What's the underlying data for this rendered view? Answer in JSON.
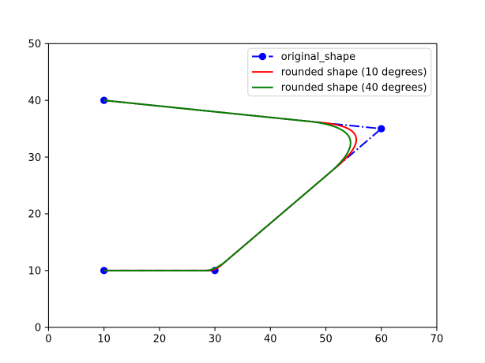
{
  "figure": {
    "background": "#ffffff",
    "text_color": "#000000",
    "axes_edge_color": "#000000"
  },
  "chart_data": {
    "type": "line",
    "title": "",
    "xlabel": "",
    "ylabel": "",
    "xlim": [
      0,
      70
    ],
    "ylim": [
      0,
      50
    ],
    "xticks": [
      0,
      10,
      20,
      30,
      40,
      50,
      60,
      70
    ],
    "yticks": [
      0,
      10,
      20,
      30,
      40,
      50
    ],
    "grid": false,
    "legend": {
      "position": "upper right",
      "frame_color": "#d6d6d6",
      "background": "#ffffff"
    },
    "series": [
      {
        "name": "original-shape-line",
        "label": "original_shape",
        "color": "#0000ff",
        "linestyle": "dashdot",
        "marker": "circle",
        "points": [
          [
            10,
            10
          ],
          [
            30,
            10
          ],
          [
            60,
            35
          ],
          [
            10,
            40
          ]
        ]
      },
      {
        "name": "rounded-shape-10-degrees-line",
        "label": "rounded shape (10 degrees)",
        "color": "#ff0000",
        "linestyle": "solid",
        "marker": "none",
        "points": [
          [
            10.0,
            10.0
          ],
          [
            28.8,
            10.0
          ],
          [
            28.87,
            10.0
          ],
          [
            28.94,
            10.0
          ],
          [
            29.01,
            10.01
          ],
          [
            29.07,
            10.01
          ],
          [
            29.14,
            10.02
          ],
          [
            29.21,
            10.03
          ],
          [
            29.28,
            10.04
          ],
          [
            29.35,
            10.05
          ],
          [
            29.41,
            10.06
          ],
          [
            29.48,
            10.08
          ],
          [
            29.55,
            10.09
          ],
          [
            29.62,
            10.11
          ],
          [
            29.68,
            10.13
          ],
          [
            29.75,
            10.15
          ],
          [
            29.82,
            10.18
          ],
          [
            29.89,
            10.2
          ],
          [
            29.95,
            10.23
          ],
          [
            30.02,
            10.25
          ],
          [
            30.09,
            10.28
          ],
          [
            30.16,
            10.31
          ],
          [
            30.22,
            10.35
          ],
          [
            30.29,
            10.38
          ],
          [
            30.36,
            10.41
          ],
          [
            30.42,
            10.45
          ],
          [
            30.49,
            10.49
          ],
          [
            30.56,
            10.53
          ],
          [
            30.62,
            10.57
          ],
          [
            30.69,
            10.61
          ],
          [
            30.76,
            10.66
          ],
          [
            30.82,
            10.71
          ],
          [
            30.89,
            10.75
          ],
          [
            30.95,
            10.8
          ],
          [
            31.02,
            10.85
          ],
          [
            31.09,
            10.91
          ],
          [
            31.15,
            10.96
          ],
          [
            52.01,
            28.34
          ],
          [
            52.45,
            28.72
          ],
          [
            52.86,
            29.08
          ],
          [
            53.25,
            29.44
          ],
          [
            53.6,
            29.79
          ],
          [
            53.92,
            30.13
          ],
          [
            54.21,
            30.46
          ],
          [
            54.47,
            30.78
          ],
          [
            54.7,
            31.09
          ],
          [
            54.91,
            31.39
          ],
          [
            55.08,
            31.69
          ],
          [
            55.22,
            31.97
          ],
          [
            55.33,
            32.25
          ],
          [
            55.42,
            32.51
          ],
          [
            55.47,
            32.77
          ],
          [
            55.49,
            33.02
          ],
          [
            55.48,
            33.25
          ],
          [
            55.45,
            33.48
          ],
          [
            55.38,
            33.7
          ],
          [
            55.28,
            33.91
          ],
          [
            55.15,
            34.12
          ],
          [
            55.0,
            34.31
          ],
          [
            54.81,
            34.49
          ],
          [
            54.59,
            34.66
          ],
          [
            54.34,
            34.83
          ],
          [
            54.07,
            34.98
          ],
          [
            53.76,
            35.13
          ],
          [
            53.42,
            35.27
          ],
          [
            53.06,
            35.4
          ],
          [
            52.66,
            35.51
          ],
          [
            52.23,
            35.62
          ],
          [
            51.78,
            35.72
          ],
          [
            51.29,
            35.82
          ],
          [
            50.77,
            35.9
          ],
          [
            50.23,
            35.97
          ],
          [
            49.65,
            36.03
          ],
          [
            10.0,
            40.0
          ]
        ]
      },
      {
        "name": "rounded-shape-40-degrees-line",
        "label": "rounded shape (40 degrees)",
        "color": "#008000",
        "linestyle": "solid",
        "marker": "none",
        "points": [
          [
            10.0,
            10.0
          ],
          [
            28.2,
            10.0
          ],
          [
            28.3,
            10.0
          ],
          [
            28.41,
            10.01
          ],
          [
            28.51,
            10.01
          ],
          [
            28.62,
            10.02
          ],
          [
            28.72,
            10.04
          ],
          [
            28.83,
            10.05
          ],
          [
            28.93,
            10.07
          ],
          [
            29.04,
            10.09
          ],
          [
            29.14,
            10.11
          ],
          [
            29.25,
            10.14
          ],
          [
            29.36,
            10.17
          ],
          [
            29.47,
            10.2
          ],
          [
            29.57,
            10.24
          ],
          [
            29.68,
            10.28
          ],
          [
            29.79,
            10.32
          ],
          [
            29.9,
            10.36
          ],
          [
            30.01,
            10.41
          ],
          [
            30.12,
            10.46
          ],
          [
            30.24,
            10.51
          ],
          [
            30.35,
            10.56
          ],
          [
            30.46,
            10.62
          ],
          [
            30.57,
            10.68
          ],
          [
            30.68,
            10.75
          ],
          [
            30.8,
            10.81
          ],
          [
            30.91,
            10.88
          ],
          [
            31.03,
            10.95
          ],
          [
            31.14,
            11.03
          ],
          [
            31.26,
            11.11
          ],
          [
            31.37,
            11.19
          ],
          [
            31.49,
            11.27
          ],
          [
            31.6,
            11.36
          ],
          [
            31.72,
            11.44
          ],
          [
            31.84,
            11.54
          ],
          [
            31.96,
            11.63
          ],
          [
            32.07,
            11.73
          ],
          [
            50.55,
            27.13
          ],
          [
            51.07,
            27.57
          ],
          [
            51.56,
            28.0
          ],
          [
            52.0,
            28.43
          ],
          [
            52.41,
            28.84
          ],
          [
            52.78,
            29.24
          ],
          [
            53.12,
            29.63
          ],
          [
            53.42,
            30.01
          ],
          [
            53.68,
            30.38
          ],
          [
            53.9,
            30.74
          ],
          [
            54.08,
            31.09
          ],
          [
            54.23,
            31.43
          ],
          [
            54.34,
            31.76
          ],
          [
            54.41,
            32.07
          ],
          [
            54.45,
            32.38
          ],
          [
            54.45,
            32.68
          ],
          [
            54.41,
            32.96
          ],
          [
            54.33,
            33.23
          ],
          [
            54.22,
            33.5
          ],
          [
            54.07,
            33.75
          ],
          [
            53.88,
            33.99
          ],
          [
            53.65,
            34.22
          ],
          [
            53.39,
            34.44
          ],
          [
            53.09,
            34.65
          ],
          [
            52.75,
            34.85
          ],
          [
            52.38,
            35.04
          ],
          [
            51.96,
            35.22
          ],
          [
            51.51,
            35.39
          ],
          [
            51.02,
            35.54
          ],
          [
            50.5,
            35.69
          ],
          [
            49.94,
            35.83
          ],
          [
            49.34,
            35.95
          ],
          [
            48.7,
            36.07
          ],
          [
            48.03,
            36.17
          ],
          [
            47.32,
            36.26
          ],
          [
            46.57,
            36.34
          ],
          [
            10.0,
            40.0
          ]
        ]
      }
    ]
  }
}
